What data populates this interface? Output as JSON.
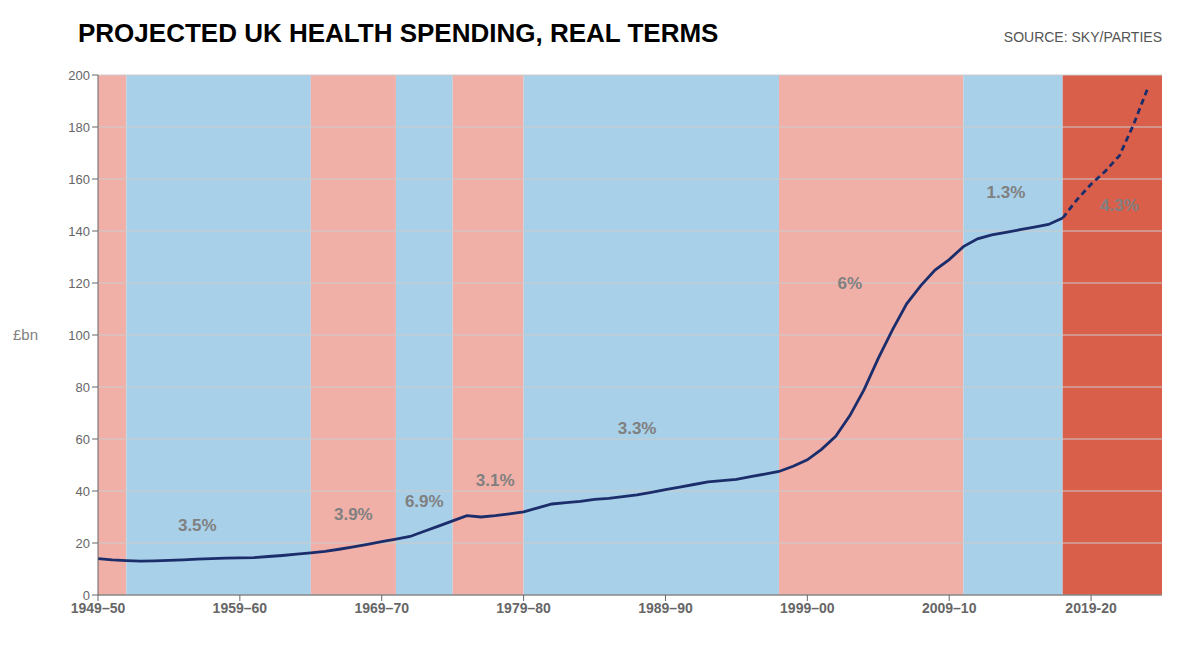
{
  "chart_data": {
    "type": "line",
    "title": "PROJECTED UK HEALTH SPENDING, REAL TERMS",
    "source": "SOURCE: SKY/PARTIES",
    "ylabel": "£bn",
    "xlim": [
      1949,
      2024
    ],
    "xticks": [
      {
        "value": 1949,
        "label": "1949–50"
      },
      {
        "value": 1959,
        "label": "1959–60"
      },
      {
        "value": 1969,
        "label": "1969–70"
      },
      {
        "value": 1979,
        "label": "1979–80"
      },
      {
        "value": 1989,
        "label": "1989–90"
      },
      {
        "value": 1999,
        "label": "1999–00"
      },
      {
        "value": 2009,
        "label": "2009–10"
      },
      {
        "value": 2019,
        "label": "2019-20"
      }
    ],
    "ylim": [
      0,
      200
    ],
    "yticks": [
      0,
      20,
      40,
      60,
      80,
      100,
      120,
      140,
      160,
      180,
      200
    ],
    "grid": true,
    "bands": [
      {
        "start": 1949,
        "end": 1951,
        "color": "#f0b0a8"
      },
      {
        "start": 1951,
        "end": 1964,
        "color": "#a8d0e8"
      },
      {
        "start": 1964,
        "end": 1970,
        "color": "#f0b0a8"
      },
      {
        "start": 1970,
        "end": 1974,
        "color": "#a8d0e8"
      },
      {
        "start": 1974,
        "end": 1979,
        "color": "#f0b0a8"
      },
      {
        "start": 1979,
        "end": 1997,
        "color": "#a8d0e8"
      },
      {
        "start": 1997,
        "end": 2010,
        "color": "#f0b0a8"
      },
      {
        "start": 2010,
        "end": 2017,
        "color": "#a8d0e8"
      },
      {
        "start": 2017,
        "end": 2024,
        "color": "#d95f4b"
      }
    ],
    "annotations": [
      {
        "x": 1956,
        "y": 24,
        "text": "3.5%"
      },
      {
        "x": 1967,
        "y": 28,
        "text": "3.9%"
      },
      {
        "x": 1972,
        "y": 33,
        "text": "6.9%"
      },
      {
        "x": 1977,
        "y": 41,
        "text": "3.1%"
      },
      {
        "x": 1987,
        "y": 61,
        "text": "3.3%"
      },
      {
        "x": 2002,
        "y": 117,
        "text": "6%"
      },
      {
        "x": 2013,
        "y": 152,
        "text": "1.3%"
      },
      {
        "x": 2021,
        "y": 147,
        "text": "4.3%"
      }
    ],
    "series": [
      {
        "color": "#1c2d6b",
        "line_style": "solid",
        "x": [
          1949,
          1950,
          1951,
          1952,
          1953,
          1954,
          1955,
          1956,
          1957,
          1958,
          1959,
          1960,
          1961,
          1962,
          1963,
          1964,
          1965,
          1966,
          1967,
          1968,
          1969,
          1970,
          1971,
          1972,
          1973,
          1974,
          1975,
          1976,
          1977,
          1978,
          1979,
          1980,
          1981,
          1982,
          1983,
          1984,
          1985,
          1986,
          1987,
          1988,
          1989,
          1990,
          1991,
          1992,
          1993,
          1994,
          1995,
          1996,
          1997,
          1998,
          1999,
          2000,
          2001,
          2002,
          2003,
          2004,
          2005,
          2006,
          2007,
          2008,
          2009,
          2010,
          2011,
          2012,
          2013,
          2014,
          2015,
          2016,
          2017
        ],
        "values": [
          14.0,
          13.5,
          13.2,
          13.0,
          13.1,
          13.3,
          13.5,
          13.8,
          14.0,
          14.2,
          14.3,
          14.4,
          14.8,
          15.2,
          15.7,
          16.2,
          16.8,
          17.6,
          18.5,
          19.5,
          20.5,
          21.5,
          22.5,
          24.5,
          26.5,
          28.5,
          30.5,
          30.0,
          30.5,
          31.2,
          32.0,
          33.5,
          35.0,
          35.5,
          36.0,
          36.8,
          37.2,
          37.8,
          38.5,
          39.5,
          40.5,
          41.5,
          42.5,
          43.5,
          44.0,
          44.5,
          45.5,
          46.5,
          47.5,
          49.5,
          52.0,
          56.0,
          61.0,
          69.0,
          79.0,
          91.0,
          102.0,
          112.0,
          119.0,
          125.0,
          129.0,
          134.0,
          137.0,
          138.5,
          139.5,
          140.5,
          141.5,
          142.5,
          145.0
        ]
      },
      {
        "color": "#1c2d6b",
        "line_style": "dashed",
        "x": [
          2017,
          2018,
          2019,
          2020,
          2021,
          2022,
          2023
        ],
        "values": [
          145.0,
          152.0,
          158.0,
          163.0,
          169.0,
          181.0,
          195.0
        ]
      }
    ]
  }
}
